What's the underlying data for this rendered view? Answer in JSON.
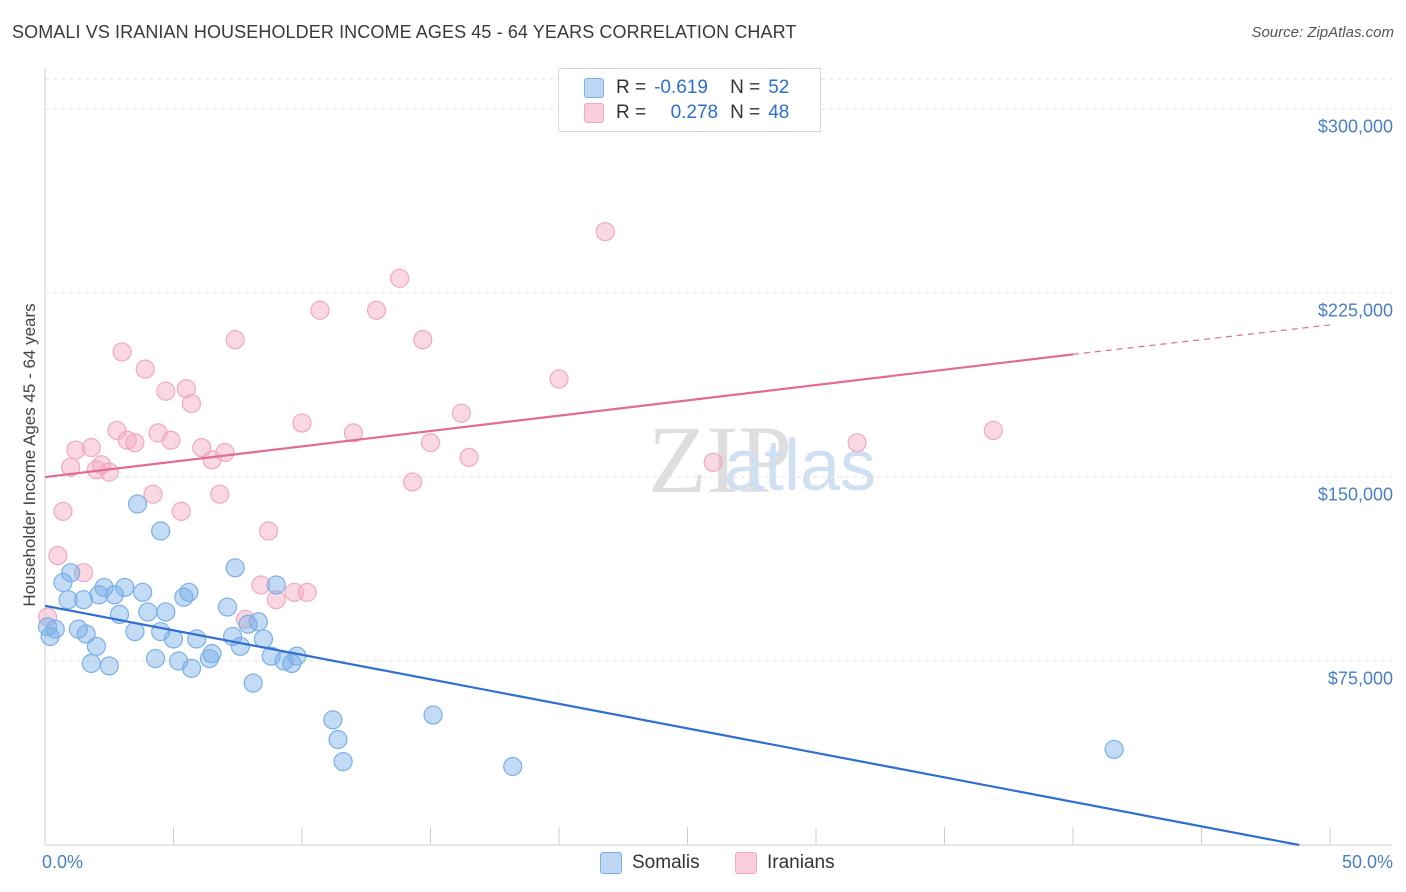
{
  "chart_data": {
    "type": "scatter",
    "title": "SOMALI VS IRANIAN HOUSEHOLDER INCOME AGES 45 - 64 YEARS CORRELATION CHART",
    "source": "Source: ZipAtlas.com",
    "ylabel": "Householder Income Ages 45 - 64 years",
    "xlabel": "",
    "xlim": [
      0,
      50
    ],
    "ylim": [
      0,
      320000
    ],
    "x_tick_labels": [
      "0.0%",
      "50.0%"
    ],
    "y_ticks": [
      {
        "value": 300000,
        "label": "$300,000"
      },
      {
        "value": 225000,
        "label": "$225,000"
      },
      {
        "value": 150000,
        "label": "$150,000"
      },
      {
        "value": 75000,
        "label": "$75,000"
      }
    ],
    "grid": "horizontal dashed",
    "legend_stats": [
      {
        "r_label": "R =",
        "r_value": "-0.619",
        "n_label": "N =",
        "n_value": "52"
      },
      {
        "r_label": "R =",
        "r_value": "0.278",
        "n_label": "N =",
        "n_value": "48"
      }
    ],
    "series": [
      {
        "name": "Somalis",
        "color": "#7ab0e8",
        "line_color": "#2f6fcf",
        "trend": {
          "x0": 0,
          "y0": 97500,
          "x1": 48.8,
          "y1": 0
        },
        "points": [
          [
            0.1,
            89000
          ],
          [
            0.4,
            88000
          ],
          [
            0.7,
            107000
          ],
          [
            0.9,
            100000
          ],
          [
            1.0,
            111000
          ],
          [
            1.3,
            88000
          ],
          [
            1.5,
            100000
          ],
          [
            1.6,
            86000
          ],
          [
            1.8,
            74000
          ],
          [
            2.0,
            81000
          ],
          [
            2.1,
            102000
          ],
          [
            2.3,
            105000
          ],
          [
            2.5,
            73000
          ],
          [
            2.7,
            102000
          ],
          [
            2.9,
            94000
          ],
          [
            3.1,
            105000
          ],
          [
            3.5,
            87000
          ],
          [
            3.6,
            139000
          ],
          [
            3.8,
            103000
          ],
          [
            4.0,
            95000
          ],
          [
            4.3,
            76000
          ],
          [
            4.5,
            87000
          ],
          [
            4.7,
            95000
          ],
          [
            5.0,
            84000
          ],
          [
            5.2,
            75000
          ],
          [
            5.4,
            101000
          ],
          [
            5.6,
            103000
          ],
          [
            5.7,
            72000
          ],
          [
            5.9,
            84000
          ],
          [
            6.4,
            76000
          ],
          [
            6.5,
            78000
          ],
          [
            7.1,
            97000
          ],
          [
            7.3,
            85000
          ],
          [
            7.4,
            113000
          ],
          [
            7.6,
            81000
          ],
          [
            7.9,
            90000
          ],
          [
            8.1,
            66000
          ],
          [
            8.3,
            91000
          ],
          [
            8.5,
            84000
          ],
          [
            8.8,
            77000
          ],
          [
            9.0,
            106000
          ],
          [
            9.3,
            75000
          ],
          [
            9.6,
            74000
          ],
          [
            9.8,
            77000
          ],
          [
            11.2,
            51000
          ],
          [
            11.4,
            43000
          ],
          [
            11.6,
            34000
          ],
          [
            4.5,
            128000
          ],
          [
            15.1,
            53000
          ],
          [
            18.2,
            32000
          ],
          [
            41.6,
            39000
          ],
          [
            0.2,
            85000
          ]
        ]
      },
      {
        "name": "Iranians",
        "color": "#f2a8c0",
        "line_color": "#e06a98",
        "trend": {
          "x0": 0,
          "y0": 150000,
          "x1": 40,
          "y1": 200000,
          "dash_x1": 50,
          "dash_y1": 212000
        },
        "points": [
          [
            0.1,
            93000
          ],
          [
            0.5,
            118000
          ],
          [
            0.7,
            136000
          ],
          [
            1.0,
            154000
          ],
          [
            1.2,
            161000
          ],
          [
            1.5,
            111000
          ],
          [
            1.8,
            162000
          ],
          [
            2.0,
            153000
          ],
          [
            2.2,
            155000
          ],
          [
            2.5,
            152000
          ],
          [
            2.8,
            169000
          ],
          [
            3.0,
            201000
          ],
          [
            3.2,
            165000
          ],
          [
            3.5,
            164000
          ],
          [
            3.9,
            194000
          ],
          [
            4.2,
            143000
          ],
          [
            4.4,
            168000
          ],
          [
            4.7,
            185000
          ],
          [
            4.9,
            165000
          ],
          [
            5.3,
            136000
          ],
          [
            5.5,
            186000
          ],
          [
            5.7,
            180000
          ],
          [
            6.1,
            162000
          ],
          [
            6.5,
            157000
          ],
          [
            6.8,
            143000
          ],
          [
            7.0,
            160000
          ],
          [
            7.4,
            206000
          ],
          [
            7.8,
            92000
          ],
          [
            8.4,
            106000
          ],
          [
            8.7,
            128000
          ],
          [
            9.0,
            100000
          ],
          [
            9.7,
            103000
          ],
          [
            10.0,
            172000
          ],
          [
            10.2,
            103000
          ],
          [
            10.7,
            218000
          ],
          [
            12.0,
            168000
          ],
          [
            12.9,
            218000
          ],
          [
            13.8,
            231000
          ],
          [
            14.3,
            148000
          ],
          [
            14.7,
            206000
          ],
          [
            15.0,
            164000
          ],
          [
            16.2,
            176000
          ],
          [
            16.5,
            158000
          ],
          [
            20.0,
            190000
          ],
          [
            21.8,
            250000
          ],
          [
            26.0,
            156000
          ],
          [
            31.6,
            164000
          ],
          [
            36.9,
            169000
          ]
        ]
      }
    ]
  }
}
